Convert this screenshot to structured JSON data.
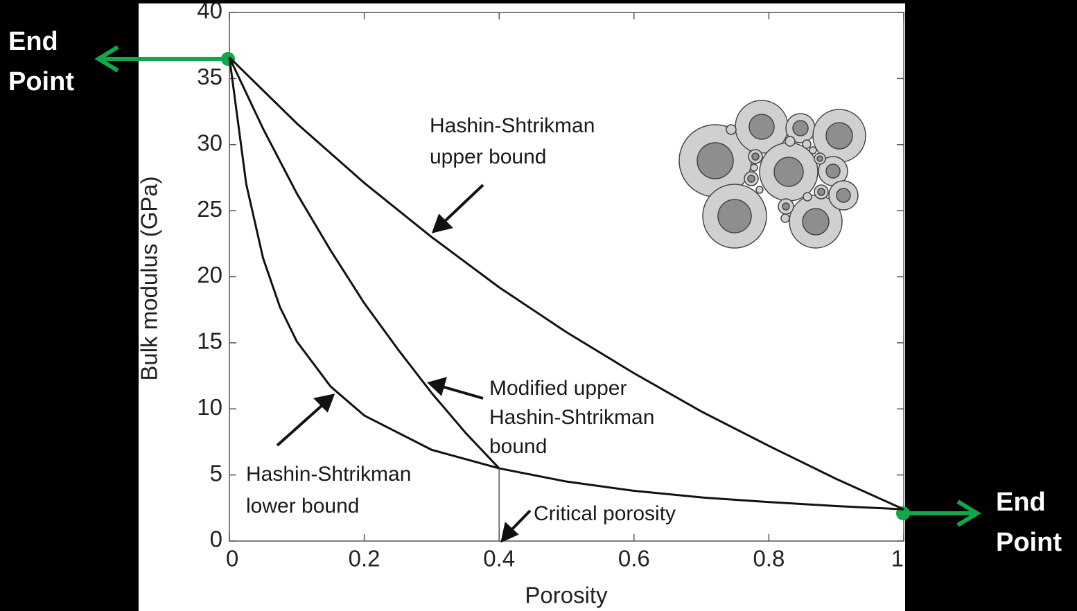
{
  "chart_data": {
    "type": "line",
    "xlabel": "Porosity",
    "ylabel": "Bulk modulus (GPa)",
    "xlim": [
      0,
      1
    ],
    "ylim": [
      0,
      40
    ],
    "xticks": [
      0,
      0.2,
      0.4,
      0.6,
      0.8,
      1
    ],
    "yticks": [
      0,
      5,
      10,
      15,
      20,
      25,
      30,
      35,
      40
    ],
    "series": [
      {
        "color": "#111111",
        "x": [
          0,
          0.1,
          0.2,
          0.3,
          0.4,
          0.5,
          0.6,
          0.7,
          0.8,
          0.9,
          1
        ],
        "values": [
          36.6,
          31.6,
          27.1,
          23.0,
          19.2,
          15.8,
          12.7,
          9.8,
          7.2,
          4.7,
          2.4
        ]
      },
      {
        "color": "#111111",
        "x": [
          0,
          0.025,
          0.05,
          0.075,
          0.1,
          0.15,
          0.2,
          0.3,
          0.4,
          0.5,
          0.6,
          0.7,
          0.8,
          0.9,
          1
        ],
        "values": [
          36.6,
          27.0,
          21.4,
          17.7,
          15.1,
          11.7,
          9.5,
          6.9,
          5.5,
          4.5,
          3.8,
          3.3,
          2.95,
          2.65,
          2.4
        ]
      },
      {
        "color": "#111111",
        "x": [
          0,
          0.05,
          0.1,
          0.15,
          0.2,
          0.25,
          0.3,
          0.35,
          0.4
        ],
        "values": [
          36.6,
          31.2,
          26.3,
          22.0,
          18.0,
          14.5,
          11.2,
          8.2,
          5.5
        ]
      }
    ],
    "critical_line": {
      "x": 0.4,
      "y": 5.5
    },
    "annotations": [
      {
        "lines": [
          "Hashin-Shtrikman",
          "upper bound"
        ]
      },
      {
        "lines": [
          "Modified upper",
          "Hashin-Shtrikman",
          "bound"
        ]
      },
      {
        "lines": [
          "Hashin-Shtrikman",
          "lower bound"
        ]
      },
      {
        "lines": [
          "Critical porosity"
        ]
      }
    ],
    "end_labels": [
      {
        "lines": [
          "End",
          "Point"
        ]
      },
      {
        "lines": [
          "End",
          "Point"
        ]
      }
    ]
  }
}
